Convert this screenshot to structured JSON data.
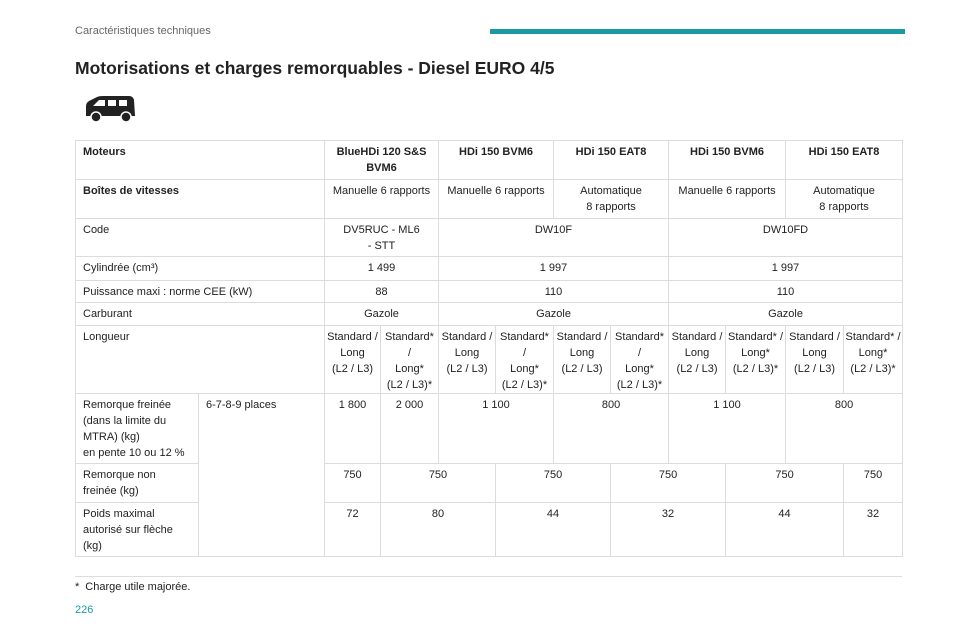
{
  "header": {
    "section": "Caractéristiques techniques"
  },
  "title": "Motorisations et charges remorquables - Diesel EURO 4/5",
  "table": {
    "rows": [
      [
        "Moteurs",
        "BlueHDi 120 S&S\nBVM6",
        "HDi 150 BVM6",
        "HDi 150 EAT8",
        "HDi 150 BVM6",
        "HDi 150 EAT8"
      ],
      [
        "Boîtes de vitesses",
        "Manuelle 6 rapports",
        "Manuelle 6 rapports",
        "Automatique\n8 rapports",
        "Manuelle 6 rapports",
        "Automatique\n8 rapports"
      ],
      [
        "Code",
        "DV5RUC - ML6\n- STT",
        "DW10F",
        "DW10FD"
      ],
      [
        "Cylindrée (cm³)",
        "1 499",
        "1 997",
        "1 997"
      ],
      [
        "Puissance maxi : norme CEE (kW)",
        "88",
        "110",
        "110"
      ],
      [
        "Carburant",
        "Gazole",
        "Gazole",
        "Gazole"
      ],
      [
        "Longueur",
        "Standard /\nLong\n(L2 / L3)",
        "Standard* /\nLong*\n(L2 / L3)*",
        "Standard /\nLong\n(L2 / L3)",
        "Standard* /\nLong*\n(L2 / L3)*",
        "Standard /\nLong\n(L2 / L3)",
        "Standard* /\nLong*\n(L2 / L3)*",
        "Standard /\nLong\n(L2 / L3)",
        "Standard* /\nLong*\n(L2 / L3)*",
        "Standard /\nLong\n(L2 / L3)",
        "Standard* /\nLong*\n(L2 / L3)*"
      ],
      [
        "Remorque freinée\n(dans la limite du\nMTRA) (kg)\nen pente 10 ou 12 %",
        "6-7-8-9 places",
        "1 800",
        "2 000",
        "1 100",
        "800",
        "1 100",
        "800"
      ],
      [
        "Remorque non\nfreinée (kg)",
        "750",
        "750",
        "750",
        "750",
        "750",
        "750"
      ],
      [
        "Poids maximal\nautorisé sur flèche\n(kg)",
        "72",
        "80",
        "44",
        "32",
        "44",
        "32"
      ]
    ]
  },
  "footnote": {
    "marker": "*",
    "text": "Charge utile majorée."
  },
  "page_number": "226"
}
